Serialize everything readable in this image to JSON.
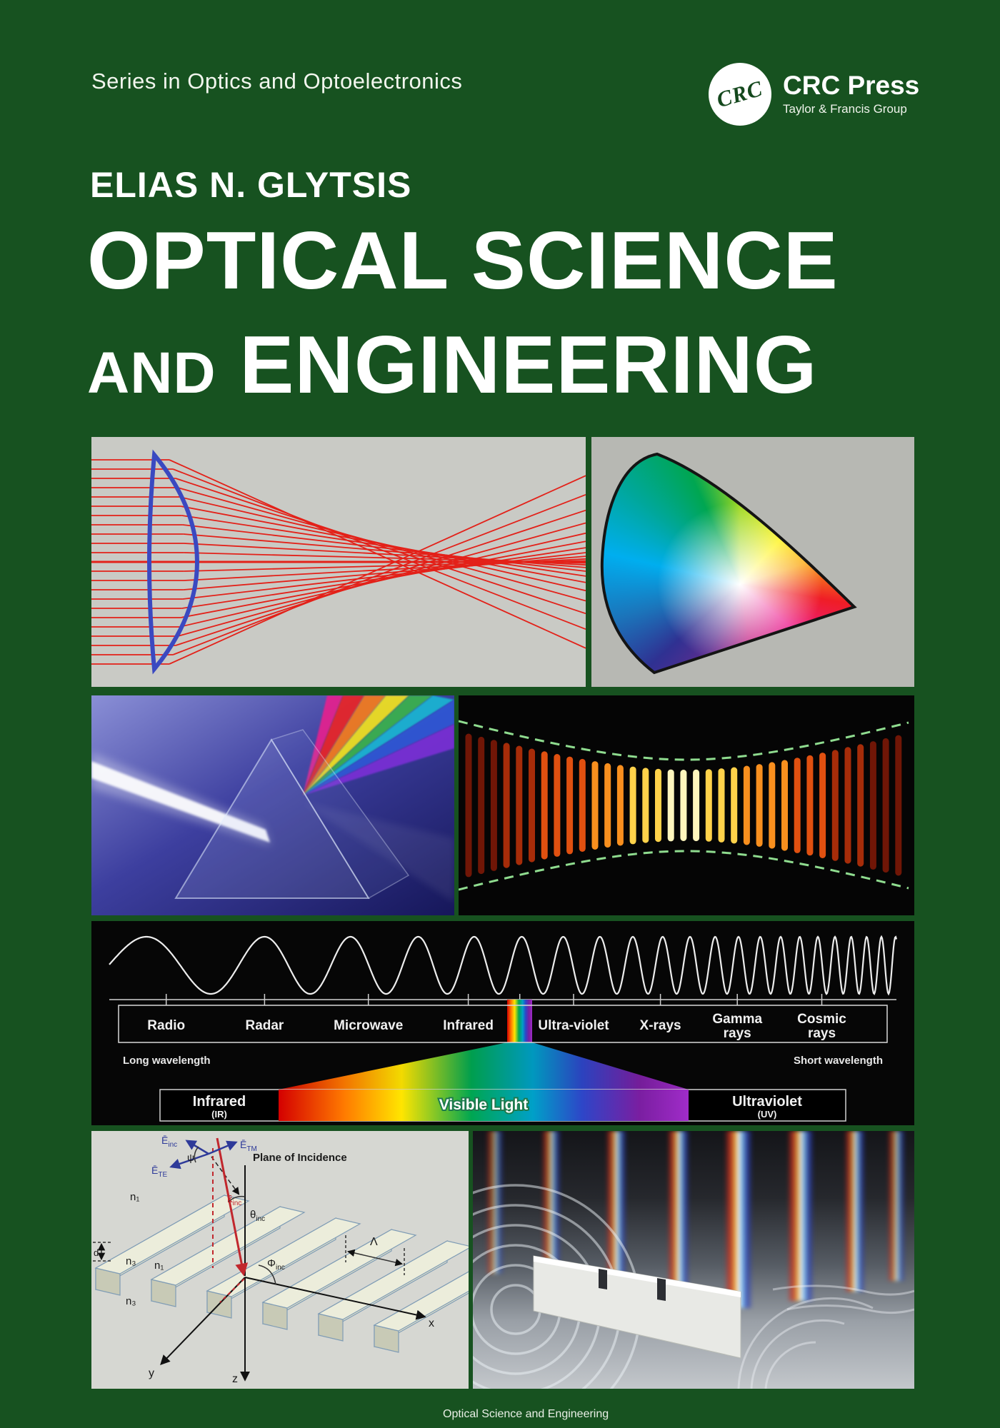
{
  "cover": {
    "background_color": "#175220",
    "series_label": "Series in Optics and Optoelectronics",
    "publisher": {
      "badge": "CRC",
      "name": "CRC Press",
      "tagline": "Taylor & Francis Group"
    },
    "author": "ELIAS N. GLYTSIS",
    "title": {
      "line1": "OPTICAL SCIENCE",
      "line2_lead": "AND",
      "line2_rest": "ENGINEERING"
    },
    "footer_text": "Optical Science and Engineering"
  },
  "panels": {
    "lens": {
      "ray_color": "#e32119",
      "lens_color": "#3a49c1"
    },
    "gaussian_beam": {
      "envelope_color": "#8fdc8f"
    },
    "em_spectrum": {
      "bands": [
        {
          "l1": "Radio"
        },
        {
          "l1": "Radar"
        },
        {
          "l1": "Microwave"
        },
        {
          "l1": "Infrared"
        },
        {
          "l1": "Ultra-violet"
        },
        {
          "l1": "X-rays"
        },
        {
          "l1": "Gamma",
          "l2": "rays"
        },
        {
          "l1": "Cosmic",
          "l2": "rays"
        }
      ],
      "long_note": "Long wavelength",
      "short_note": "Short wavelength",
      "bar": {
        "left": "Infrared",
        "left_sub": "(IR)",
        "center": "Visible Light",
        "right": "Ultraviolet",
        "right_sub": "(UV)"
      }
    },
    "grating": {
      "plane_label": "Plane of Incidence",
      "e_inc": {
        "base": "Ē",
        "sub": "inc"
      },
      "e_tm": {
        "base": "Ē",
        "sub": "TM"
      },
      "e_te": {
        "base": "Ē",
        "sub": "TE"
      },
      "psi": "ψ",
      "k_inc": {
        "base": "k̄",
        "sub": "inc"
      },
      "theta": {
        "base": "θ",
        "sub": "inc"
      },
      "phi": {
        "base": "Φ",
        "sub": "inc"
      },
      "lambda": "Λ",
      "depth": "d",
      "n1": "n₁",
      "n3": "n₃",
      "axis_x": "x",
      "axis_y": "y",
      "axis_z": "z"
    }
  }
}
